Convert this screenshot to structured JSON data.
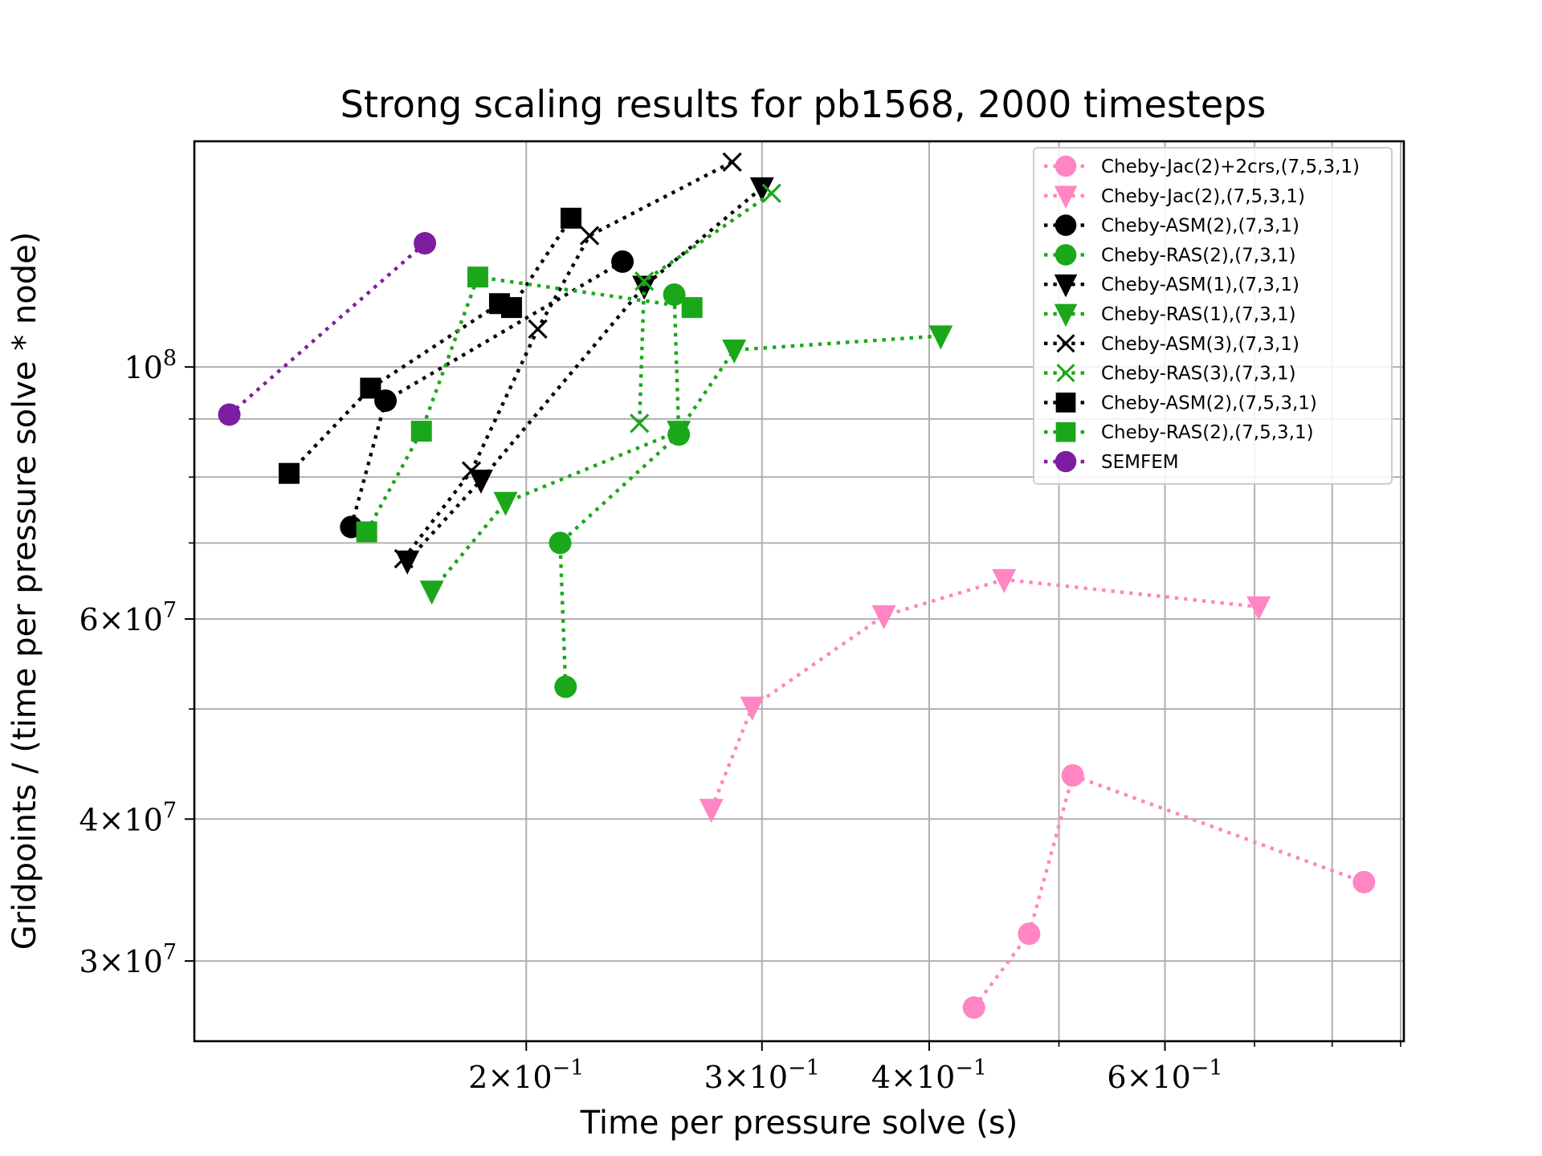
{
  "chart_data": {
    "type": "scatter",
    "title": "Strong scaling results for pb1568, 2000 timesteps",
    "xlabel": "Time per pressure solve (s)",
    "ylabel": "Gridpoints / (time per pressure solve * node)",
    "x_scale": "log",
    "y_scale": "log",
    "xlim": [
      0.113,
      0.905
    ],
    "ylim": [
      25500000,
      158000000
    ],
    "grid": true,
    "legend_position": "top-right",
    "x_ticks": [
      {
        "value": 0.2,
        "mantissa": "2",
        "exponent": "−1"
      },
      {
        "value": 0.3,
        "mantissa": "3",
        "exponent": "−1"
      },
      {
        "value": 0.4,
        "mantissa": "4",
        "exponent": "−1"
      },
      {
        "value": 0.6,
        "mantissa": "6",
        "exponent": "−1"
      }
    ],
    "x_minor_ticks": [
      0.5,
      0.7,
      0.8,
      0.9
    ],
    "y_ticks": [
      {
        "value": 30000000,
        "mantissa": "3",
        "exponent": "7"
      },
      {
        "value": 40000000,
        "mantissa": "4",
        "exponent": "7"
      },
      {
        "value": 60000000,
        "mantissa": "6",
        "exponent": "7"
      },
      {
        "value": 100000000,
        "mantissa": "",
        "exponent": "8"
      }
    ],
    "y_minor_ticks": [
      50000000,
      70000000,
      80000000,
      90000000
    ],
    "series": [
      {
        "name": "Cheby-Jac(2)+2crs,(7,5,3,1)",
        "color": "#ff85c3",
        "marker": "circle",
        "x": [
          0.432,
          0.475,
          0.512,
          0.845
        ],
        "y": [
          27300000,
          31700000,
          43700000,
          35200000
        ]
      },
      {
        "name": "Cheby-Jac(2),(7,5,3,1)",
        "color": "#ff85c3",
        "marker": "triangle-down",
        "x": [
          0.275,
          0.295,
          0.37,
          0.455,
          0.705
        ],
        "y": [
          40800000,
          50200000,
          60400000,
          65000000,
          61500000
        ]
      },
      {
        "name": "Cheby-ASM(2),(7,3,1)",
        "color": "#000000",
        "marker": "circle",
        "x": [
          0.148,
          0.157,
          0.236
        ],
        "y": [
          72300000,
          93400000,
          123800000
        ]
      },
      {
        "name": "Cheby-RAS(2),(7,3,1)",
        "color": "#1aa81a",
        "marker": "circle",
        "x": [
          0.214,
          0.212,
          0.26,
          0.258
        ],
        "y": [
          52300000,
          70000000,
          87200000,
          115800000
        ]
      },
      {
        "name": "Cheby-ASM(1),(7,3,1)",
        "color": "#000000",
        "marker": "triangle-down",
        "x": [
          0.163,
          0.185,
          0.245,
          0.3
        ],
        "y": [
          67500000,
          79500000,
          117800000,
          143800000
        ]
      },
      {
        "name": "Cheby-RAS(1),(7,3,1)",
        "color": "#1aa81a",
        "marker": "triangle-down",
        "x": [
          0.17,
          0.193,
          0.26,
          0.286,
          0.408
        ],
        "y": [
          63500000,
          76000000,
          87800000,
          103500000,
          106500000
        ]
      },
      {
        "name": "Cheby-ASM(3),(7,3,1)",
        "color": "#000000",
        "marker": "x",
        "x": [
          0.162,
          0.182,
          0.204,
          0.223,
          0.285
        ],
        "y": [
          67800000,
          81000000,
          108000000,
          130500000,
          151500000
        ]
      },
      {
        "name": "Cheby-RAS(3),(7,3,1)",
        "color": "#1aa81a",
        "marker": "x",
        "x": [
          0.243,
          0.245,
          0.305
        ],
        "y": [
          89200000,
          119000000,
          142200000
        ]
      },
      {
        "name": "Cheby-ASM(2),(7,5,3,1)",
        "color": "#000000",
        "marker": "square",
        "x": [
          0.133,
          0.153,
          0.191,
          0.195,
          0.216
        ],
        "y": [
          80600000,
          95800000,
          113700000,
          112800000,
          135200000
        ]
      },
      {
        "name": "Cheby-RAS(2),(7,5,3,1)",
        "color": "#1aa81a",
        "marker": "square",
        "x": [
          0.152,
          0.167,
          0.184,
          0.266
        ],
        "y": [
          71600000,
          87800000,
          120000000,
          112800000
        ]
      },
      {
        "name": "SEMFEM",
        "color": "#7d1ea0",
        "marker": "circle",
        "x": [
          0.12,
          0.168
        ],
        "y": [
          90800000,
          128500000
        ]
      }
    ]
  }
}
